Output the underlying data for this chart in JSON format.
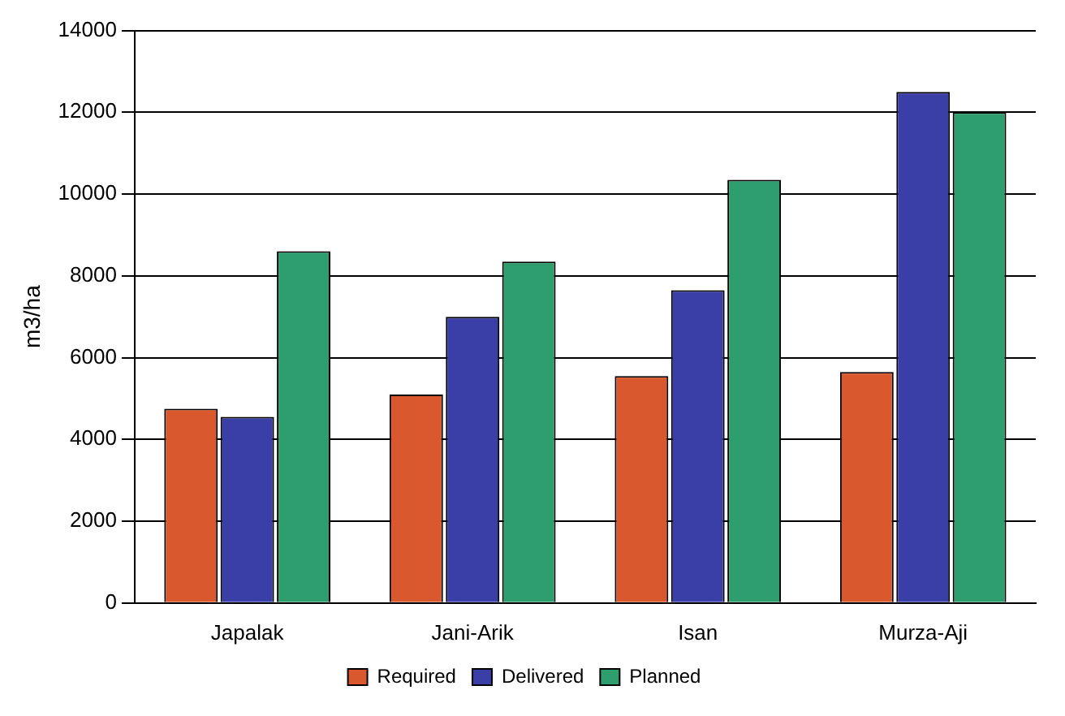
{
  "chart_data": {
    "type": "bar",
    "ylabel": "m3/ha",
    "categories": [
      "Japalak",
      "Jani-Arik",
      "Isan",
      "Murza-Aji"
    ],
    "series": [
      {
        "name": "Required",
        "color": "#d9582e",
        "values": [
          4750,
          5100,
          5550,
          5650
        ]
      },
      {
        "name": "Delivered",
        "color": "#3a3fa8",
        "values": [
          4550,
          7000,
          7650,
          12500
        ]
      },
      {
        "name": "Planned",
        "color": "#2e9e6e",
        "values": [
          8600,
          8350,
          10350,
          12000
        ]
      }
    ],
    "ylim": [
      0,
      14000
    ],
    "yticks": [
      0,
      2000,
      4000,
      6000,
      8000,
      10000,
      12000,
      14000
    ],
    "grid": "y",
    "legend": "bottom"
  }
}
